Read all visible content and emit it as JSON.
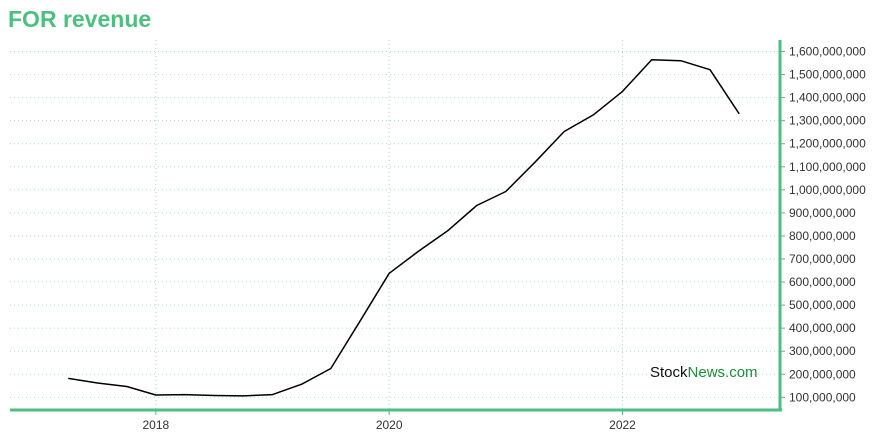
{
  "title": "FOR revenue",
  "watermark": {
    "part1": "Stock",
    "part2": "News.com"
  },
  "colors": {
    "accent": "#4dbf7f",
    "line": "#000000",
    "grid": "#a9dfc6",
    "watermark_news": "#1c8f3a"
  },
  "chart_data": {
    "type": "line",
    "title": "FOR revenue",
    "xlabel": "",
    "ylabel": "",
    "x_ticks": [
      "2018",
      "2020",
      "2022"
    ],
    "y_ticks": [
      "100,000,000",
      "200,000,000",
      "300,000,000",
      "400,000,000",
      "500,000,000",
      "600,000,000",
      "700,000,000",
      "800,000,000",
      "900,000,000",
      "1,000,000,000",
      "1,100,000,000",
      "1,200,000,000",
      "1,300,000,000",
      "1,400,000,000",
      "1,500,000,000",
      "1,600,000,000"
    ],
    "xlim": [
      2016.75,
      2023.35
    ],
    "ylim": [
      45000000,
      1650000000
    ],
    "y_axis_side": "right",
    "grid": true,
    "legend": "none",
    "series": [
      {
        "x": [
          2017.25,
          2017.5,
          2017.75,
          2018.0,
          2018.25,
          2018.5,
          2018.75,
          2019.0,
          2019.25,
          2019.5,
          2019.75,
          2020.0,
          2020.25,
          2020.5,
          2020.75,
          2021.0,
          2021.25,
          2021.5,
          2021.75,
          2022.0,
          2022.25,
          2022.5,
          2022.75,
          2023.0
        ],
        "y": [
          182000000,
          162000000,
          147000000,
          110000000,
          112000000,
          108000000,
          106000000,
          112000000,
          157000000,
          225000000,
          430000000,
          638000000,
          733000000,
          822000000,
          932000000,
          993000000,
          1120000000,
          1253000000,
          1325000000,
          1427000000,
          1564000000,
          1560000000,
          1521000000,
          1330000000
        ]
      }
    ]
  }
}
